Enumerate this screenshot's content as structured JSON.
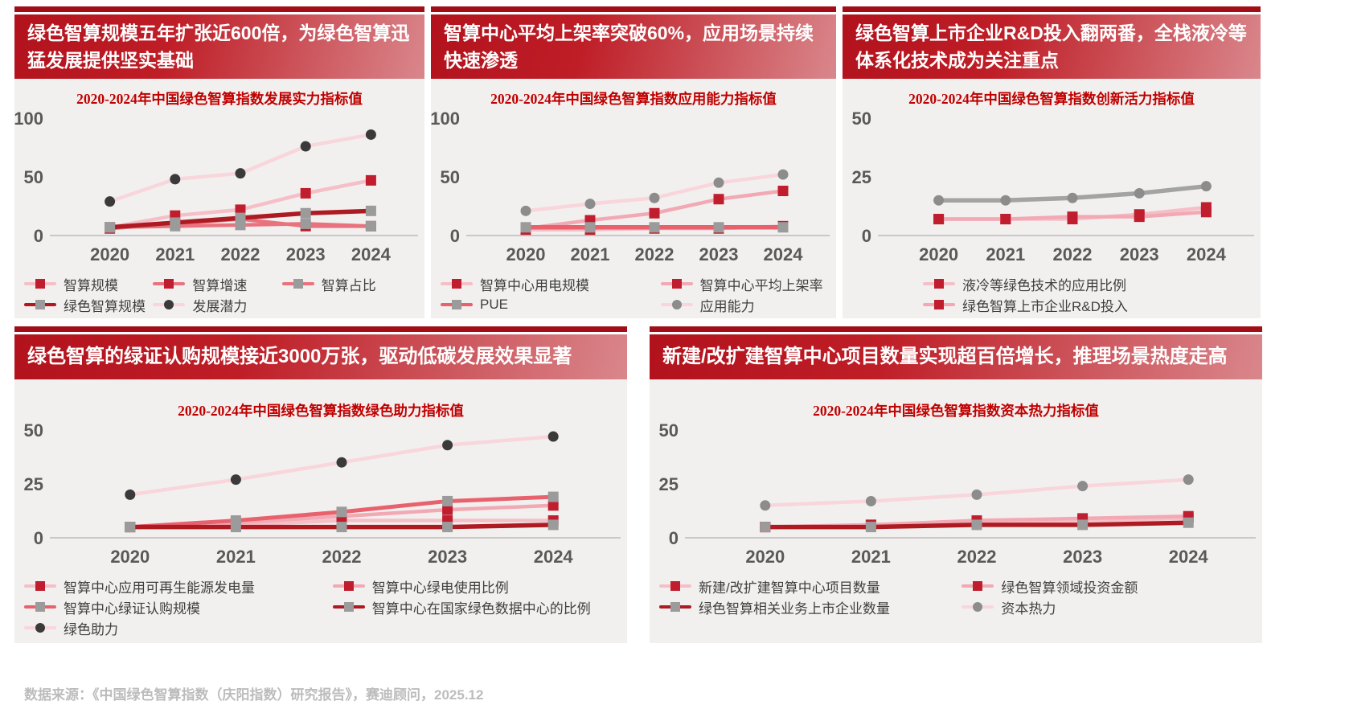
{
  "footer": {
    "source_note": "数据来源：《中国绿色智算指数（庆阳指数）研究报告》，赛迪顾问，2025.12"
  },
  "colors": {
    "banner_red_dark": "#B2121C",
    "banner_red_light": "#D9878C",
    "accent_strip": "#A10E18",
    "chart_title_red": "#C00000",
    "axis_label_gray": "#595959",
    "panel_bg": "#F2F0EF"
  },
  "panels": [
    {
      "header": "绿色智算规模五年扩张近600倍，为绿色智算迅猛发展提供坚实基础"
    },
    {
      "header": "智算中心平均上架率突破60%，应用场景持续快速渗透"
    },
    {
      "header": "绿色智算上市企业R&D投入翻两番，全栈液冷等体系化技术成为关注重点"
    },
    {
      "header": "绿色智算的绿证认购规模接近3000万张，驱动低碳发展效果显著"
    },
    {
      "header": "新建/改扩建智算中心项目数量实现超百倍增长，推理场景热度走高"
    }
  ],
  "chart_data": [
    {
      "type": "line",
      "title": "2020-2024年中国绿色智算指数发展实力指标值",
      "categories": [
        "2020",
        "2021",
        "2022",
        "2023",
        "2024"
      ],
      "ylim": [
        0,
        100
      ],
      "yticks": [
        0,
        50,
        100
      ],
      "grid": false,
      "legend_position": "bottom",
      "series": [
        {
          "name": "智算规模",
          "values": [
            7,
            17,
            22,
            36,
            47
          ],
          "line_color": "#F5BFC8",
          "line_width": 4.5,
          "marker": "square",
          "marker_color": "#C01E2E"
        },
        {
          "name": "智算增速",
          "values": [
            6,
            10,
            14,
            8,
            8
          ],
          "line_color": "#E8737E",
          "line_width": 4.5,
          "marker": "square",
          "marker_color": "#C01E2E"
        },
        {
          "name": "智算占比",
          "values": [
            7,
            8,
            9,
            10,
            8
          ],
          "line_color": "#E8737E",
          "line_width": 4.5,
          "marker": "square",
          "marker_color": "#9B9B9B"
        },
        {
          "name": "绿色智算规模",
          "values": [
            7,
            11,
            15,
            19,
            21
          ],
          "line_color": "#AE1A22",
          "line_width": 5.5,
          "marker": "square",
          "marker_color": "#9B9B9B"
        },
        {
          "name": "发展潜力",
          "values": [
            29,
            48,
            53,
            76,
            86
          ],
          "line_color": "#F8D6DB",
          "line_width": 4.5,
          "marker": "circle",
          "marker_color": "#3A3A3A"
        }
      ]
    },
    {
      "type": "line",
      "title": "2020-2024年中国绿色智算指数应用能力指标值",
      "categories": [
        "2020",
        "2021",
        "2022",
        "2023",
        "2024"
      ],
      "ylim": [
        0,
        100
      ],
      "yticks": [
        0,
        50,
        100
      ],
      "grid": false,
      "legend_position": "bottom",
      "series": [
        {
          "name": "智算中心用电规模",
          "values": [
            5,
            5,
            6,
            6,
            8
          ],
          "line_color": "#F5BFC8",
          "line_width": 4.5,
          "marker": "square",
          "marker_color": "#C01E2E"
        },
        {
          "name": "智算中心平均上架率",
          "values": [
            6,
            13,
            19,
            31,
            38
          ],
          "line_color": "#F2A9B4",
          "line_width": 4.5,
          "marker": "square",
          "marker_color": "#C01E2E"
        },
        {
          "name": "PUE",
          "values": [
            7,
            7,
            7,
            7,
            7
          ],
          "line_color": "#E8626E",
          "line_width": 5.5,
          "marker": "square",
          "marker_color": "#9B9B9B"
        },
        {
          "name": "应用能力",
          "values": [
            21,
            27,
            32,
            45,
            52
          ],
          "line_color": "#F8D6DB",
          "line_width": 4.5,
          "marker": "circle",
          "marker_color": "#8C8C8C"
        }
      ]
    },
    {
      "type": "line",
      "title": "2020-2024年中国绿色智算指数创新活力指标值",
      "categories": [
        "2020",
        "2021",
        "2022",
        "2023",
        "2024"
      ],
      "ylim": [
        0,
        50
      ],
      "yticks": [
        0,
        25,
        50
      ],
      "grid": false,
      "legend_position": "bottom",
      "series": [
        {
          "name": "液冷等绿色技术的应用比例",
          "values": [
            7,
            7,
            7,
            9,
            12
          ],
          "line_color": "#F5BFC8",
          "line_width": 4.5,
          "marker": "square",
          "marker_color": "#C01E2E"
        },
        {
          "name": "绿色智算上市企业R&D投入",
          "values": [
            7,
            7,
            8,
            8,
            10
          ],
          "line_color": "#F2A9B4",
          "line_width": 4.5,
          "marker": "square",
          "marker_color": "#C01E2E"
        },
        {
          "name": "创新活力",
          "values": [
            15,
            15,
            16,
            18,
            21
          ],
          "line_color": "#A3A3A3",
          "line_width": 5.5,
          "marker": "circle",
          "marker_color": "#8C8C8C"
        }
      ]
    },
    {
      "type": "line",
      "title": "2020-2024年中国绿色智算指数绿色助力指标值",
      "categories": [
        "2020",
        "2021",
        "2022",
        "2023",
        "2024"
      ],
      "ylim": [
        0,
        50
      ],
      "yticks": [
        0,
        25,
        50
      ],
      "grid": false,
      "legend_position": "bottom",
      "series": [
        {
          "name": "智算中心应用可再生能源发电量",
          "values": [
            5,
            6,
            8,
            8,
            8
          ],
          "line_color": "#F5BFC8",
          "line_width": 4.5,
          "marker": "square",
          "marker_color": "#C01E2E"
        },
        {
          "name": "智算中心绿电使用比例",
          "values": [
            5,
            7,
            10,
            13,
            15
          ],
          "line_color": "#F2A9B4",
          "line_width": 4.5,
          "marker": "square",
          "marker_color": "#C01E2E"
        },
        {
          "name": "智算中心绿证认购规模",
          "values": [
            5,
            8,
            12,
            17,
            19
          ],
          "line_color": "#E8626E",
          "line_width": 5,
          "marker": "square",
          "marker_color": "#9B9B9B"
        },
        {
          "name": "智算中心在国家绿色数据中心的比例",
          "values": [
            5,
            5,
            5,
            5,
            6
          ],
          "line_color": "#AE1A22",
          "line_width": 5.5,
          "marker": "square",
          "marker_color": "#9B9B9B"
        },
        {
          "name": "绿色助力",
          "values": [
            20,
            27,
            35,
            43,
            47
          ],
          "line_color": "#F8D6DB",
          "line_width": 4.5,
          "marker": "circle",
          "marker_color": "#3A3A3A"
        }
      ]
    },
    {
      "type": "line",
      "title": "2020-2024年中国绿色智算指数资本热力指标值",
      "categories": [
        "2020",
        "2021",
        "2022",
        "2023",
        "2024"
      ],
      "ylim": [
        0,
        50
      ],
      "yticks": [
        0,
        25,
        50
      ],
      "grid": false,
      "legend_position": "bottom",
      "series": [
        {
          "name": "新建/改扩建智算中心项目数量",
          "values": [
            5,
            6,
            7,
            8,
            9
          ],
          "line_color": "#F5BFC8",
          "line_width": 4.5,
          "marker": "square",
          "marker_color": "#C01E2E"
        },
        {
          "name": "绿色智算领域投资金额",
          "values": [
            5,
            6,
            8,
            9,
            10
          ],
          "line_color": "#F2A9B4",
          "line_width": 4.5,
          "marker": "square",
          "marker_color": "#C01E2E"
        },
        {
          "name": "绿色智算相关业务上市企业数量",
          "values": [
            5,
            5,
            6,
            6,
            7
          ],
          "line_color": "#AE1A22",
          "line_width": 5.5,
          "marker": "square",
          "marker_color": "#9B9B9B"
        },
        {
          "name": "资本热力",
          "values": [
            15,
            17,
            20,
            24,
            27
          ],
          "line_color": "#F8D6DB",
          "line_width": 4.5,
          "marker": "circle",
          "marker_color": "#8C8C8C"
        }
      ]
    }
  ]
}
